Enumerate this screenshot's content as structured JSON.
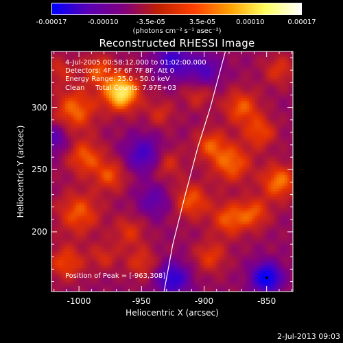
{
  "colorbar": {
    "ticks": [
      "-0.00017",
      "-0.00010",
      "-3.5e-05",
      "3.5e-05",
      "0.00010",
      "0.00017"
    ],
    "tick_values": [
      -0.00017,
      -0.0001,
      -3.5e-05,
      3.5e-05,
      0.0001,
      0.00017
    ],
    "units": "(photons cm⁻² s⁻¹ asec⁻²)",
    "colors": [
      "#0000ff",
      "#5a00b4",
      "#800080",
      "#c02000",
      "#ff4000",
      "#ffa000",
      "#ffff60",
      "#ffffff"
    ]
  },
  "info": {
    "time_range": "4-Jul-2005 00:58:12.000 to 01:02:00.000",
    "detectors": "Detectors: 4F 5F 6F 7F 8F, Att 0",
    "energy": "Energy Range: 25.0 - 50.0 keV",
    "clean": "Clean     Total Counts: 7.97E+03"
  },
  "peak": "Position of Peak = [-963,308]",
  "footer_date": "2-Jul-2013 09:03",
  "chart_data": {
    "type": "heatmap",
    "title": "Reconstructed RHESSI Image",
    "xlabel": "Heliocentric X (arcsec)",
    "ylabel": "Heliocentric Y (arcsec)",
    "xlim": [
      -1022,
      -829
    ],
    "ylim": [
      152,
      345
    ],
    "xticks": [
      -1000,
      -950,
      -900,
      -850
    ],
    "xtick_labels": [
      "-1000",
      "-950",
      "-900",
      "-850"
    ],
    "yticks": [
      200,
      250,
      300
    ],
    "ytick_labels": [
      "200",
      "250",
      "300"
    ],
    "limb_curve": [
      [
        -932,
        152
      ],
      [
        -925,
        190
      ],
      [
        -915,
        230
      ],
      [
        -905,
        268
      ],
      [
        -895,
        300
      ],
      [
        -883,
        345
      ]
    ],
    "peak_position": [
      -963,
      308
    ],
    "hotspots": [
      [
        -966,
        312,
        1.0,
        10
      ],
      [
        -1003,
        298,
        0.55,
        12
      ],
      [
        -995,
        260,
        0.5,
        10
      ],
      [
        -975,
        245,
        0.45,
        9
      ],
      [
        -1000,
        215,
        0.5,
        12
      ],
      [
        -960,
        200,
        0.35,
        9
      ],
      [
        -935,
        295,
        0.3,
        8
      ],
      [
        -930,
        255,
        0.35,
        9
      ],
      [
        -910,
        225,
        0.5,
        10
      ],
      [
        -895,
        270,
        0.45,
        9
      ],
      [
        -905,
        310,
        0.3,
        8
      ],
      [
        -878,
        255,
        0.55,
        11
      ],
      [
        -870,
        300,
        0.5,
        10
      ],
      [
        -855,
        280,
        0.45,
        9
      ],
      [
        -840,
        240,
        0.6,
        10
      ],
      [
        -880,
        210,
        0.5,
        10
      ],
      [
        -860,
        215,
        0.45,
        9
      ],
      [
        -895,
        180,
        0.4,
        9
      ],
      [
        -950,
        175,
        0.35,
        9
      ],
      [
        -1010,
        175,
        0.45,
        10
      ],
      [
        -980,
        180,
        0.3,
        8
      ],
      [
        -840,
        330,
        0.35,
        9
      ],
      [
        -1015,
        330,
        0.3,
        8
      ],
      [
        -985,
        330,
        0.45,
        9
      ]
    ],
    "coldspots": [
      [
        -850,
        163,
        1.0,
        8
      ],
      [
        -925,
        162,
        0.7,
        9
      ],
      [
        -948,
        262,
        0.55,
        10
      ],
      [
        -925,
        338,
        0.6,
        10
      ],
      [
        -900,
        330,
        0.45,
        9
      ],
      [
        -1020,
        275,
        0.4,
        8
      ],
      [
        -940,
        225,
        0.35,
        9
      ]
    ]
  }
}
